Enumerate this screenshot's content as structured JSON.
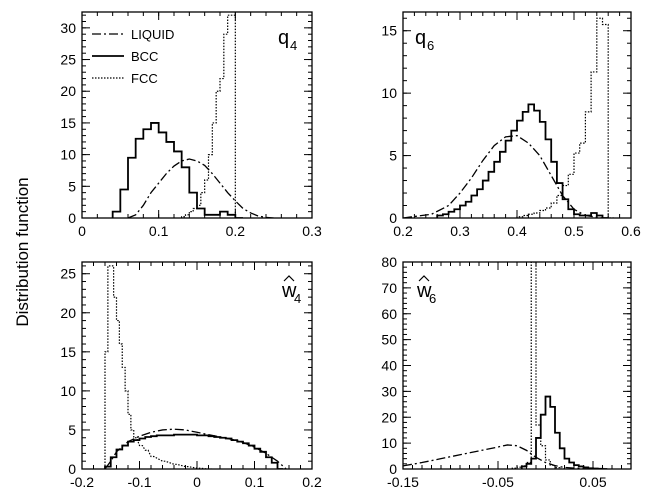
{
  "ylabel": "Distribution function",
  "styles": {
    "LIQUID": {
      "dash": "9,3,2,3",
      "width": 1.3
    },
    "BCC": {
      "dash": "",
      "width": 1.8
    },
    "FCC": {
      "dash": "1.5,1.5",
      "width": 1.2
    }
  },
  "legend": [
    {
      "label": "LIQUID",
      "style": "LIQUID"
    },
    {
      "label": "BCC",
      "style": "BCC"
    },
    {
      "label": "FCC",
      "style": "FCC"
    }
  ],
  "chart_data": [
    {
      "type": "line",
      "title": "q",
      "sub": "4",
      "hat": false,
      "xlim": [
        0,
        0.3
      ],
      "ylim": [
        0,
        32.5
      ],
      "xticks": [
        0,
        0.1,
        0.2,
        0.3
      ],
      "xtick_labels": [
        "0",
        "0.1",
        "0.2",
        "0.3"
      ],
      "xminor": 0.02,
      "yticks": [
        0,
        5,
        10,
        15,
        20,
        25,
        30
      ],
      "ytick_labels": [
        "0",
        "5",
        "10",
        "15",
        "20",
        "25",
        "30"
      ],
      "yminor": 1,
      "series": [
        {
          "name": "LIQUID",
          "step": false,
          "x": [
            0.06,
            0.07,
            0.08,
            0.09,
            0.1,
            0.11,
            0.12,
            0.13,
            0.14,
            0.15,
            0.16,
            0.17,
            0.18,
            0.19,
            0.2,
            0.21,
            0.22,
            0.23,
            0.24,
            0.25
          ],
          "y": [
            0,
            0.5,
            2,
            4,
            5.5,
            7,
            8.2,
            9,
            9.3,
            9,
            8.3,
            7,
            5.5,
            4,
            2.7,
            1.5,
            0.8,
            0.3,
            0.1,
            0
          ]
        },
        {
          "name": "BCC",
          "step": true,
          "w": 0.01,
          "x": [
            0.04,
            0.05,
            0.06,
            0.07,
            0.08,
            0.09,
            0.1,
            0.11,
            0.12,
            0.13,
            0.14,
            0.15,
            0.16,
            0.17,
            0.18,
            0.19,
            0.2
          ],
          "y": [
            1,
            4.5,
            9.5,
            12.5,
            14,
            15,
            13.5,
            12,
            10.5,
            8,
            4,
            1.5,
            0.5,
            0.5,
            1,
            0.5,
            0
          ]
        },
        {
          "name": "FCC",
          "step": true,
          "w": 0.005,
          "x": [
            0.13,
            0.135,
            0.14,
            0.145,
            0.15,
            0.155,
            0.16,
            0.165,
            0.17,
            0.175,
            0.18,
            0.185,
            0.19,
            0.195
          ],
          "y": [
            0.2,
            0.5,
            1,
            1.5,
            2,
            4,
            6,
            10,
            15,
            20,
            22,
            29,
            32,
            32
          ]
        }
      ]
    },
    {
      "type": "line",
      "title": "q",
      "sub": "6",
      "hat": false,
      "xlim": [
        0.2,
        0.6
      ],
      "ylim": [
        0,
        16.5
      ],
      "xticks": [
        0.2,
        0.3,
        0.4,
        0.5,
        0.6
      ],
      "xtick_labels": [
        "0.2",
        "0.3",
        "0.4",
        "0.5",
        "0.6"
      ],
      "xminor": 0.02,
      "yticks": [
        0,
        5,
        10,
        15
      ],
      "ytick_labels": [
        "0",
        "5",
        "10",
        "15"
      ],
      "yminor": 1,
      "series": [
        {
          "name": "LIQUID",
          "step": false,
          "x": [
            0.2,
            0.25,
            0.28,
            0.3,
            0.32,
            0.34,
            0.36,
            0.38,
            0.4,
            0.42,
            0.44,
            0.46,
            0.48,
            0.5,
            0.52,
            0.55
          ],
          "y": [
            0,
            0.3,
            1,
            2,
            3.2,
            4.6,
            5.8,
            6.5,
            6.6,
            6,
            5,
            3.4,
            1.8,
            0.7,
            0.2,
            0
          ]
        },
        {
          "name": "BCC",
          "step": true,
          "w": 0.01,
          "x": [
            0.26,
            0.27,
            0.28,
            0.29,
            0.3,
            0.31,
            0.32,
            0.33,
            0.34,
            0.35,
            0.36,
            0.37,
            0.38,
            0.39,
            0.4,
            0.41,
            0.42,
            0.43,
            0.44,
            0.45,
            0.46,
            0.47,
            0.48,
            0.49,
            0.5,
            0.51,
            0.52,
            0.53,
            0.54,
            0.55
          ],
          "y": [
            0.2,
            0.3,
            0.5,
            0.7,
            1,
            1.3,
            1.8,
            2.3,
            3,
            3.7,
            4.5,
            5.3,
            6.2,
            7,
            7.8,
            8.5,
            9.1,
            8.6,
            7.7,
            6.3,
            4.5,
            2.8,
            1.5,
            0.7,
            0.3,
            0.2,
            0.2,
            0.4,
            0.2,
            0
          ]
        },
        {
          "name": "FCC",
          "step": true,
          "w": 0.01,
          "x": [
            0.4,
            0.41,
            0.42,
            0.43,
            0.44,
            0.45,
            0.46,
            0.47,
            0.48,
            0.49,
            0.5,
            0.51,
            0.52,
            0.53,
            0.54,
            0.55,
            0.56
          ],
          "y": [
            0.1,
            0.2,
            0.3,
            0.4,
            0.6,
            0.8,
            1.2,
            1.8,
            2.6,
            3.5,
            5.2,
            6,
            8.5,
            11.7,
            16,
            15.5,
            0
          ]
        }
      ]
    },
    {
      "type": "line",
      "title": "w",
      "sub": "4",
      "hat": true,
      "xlim": [
        -0.2,
        0.2
      ],
      "ylim": [
        0,
        26.5
      ],
      "xticks": [
        -0.2,
        -0.1,
        0,
        0.1,
        0.2
      ],
      "xtick_labels": [
        "-0.2",
        "-0.1",
        "0",
        "0.1",
        "0.2"
      ],
      "xminor": 0.02,
      "yticks": [
        0,
        5,
        10,
        15,
        20,
        25
      ],
      "ytick_labels": [
        "0",
        "5",
        "10",
        "15",
        "20",
        "25"
      ],
      "yminor": 1,
      "series": [
        {
          "name": "LIQUID",
          "step": false,
          "x": [
            -0.16,
            -0.15,
            -0.14,
            -0.12,
            -0.1,
            -0.08,
            -0.06,
            -0.04,
            -0.02,
            0,
            0.02,
            0.04,
            0.06,
            0.08,
            0.1,
            0.12,
            0.14,
            0.155
          ],
          "y": [
            0,
            1,
            2.2,
            3.5,
            4.2,
            4.7,
            5,
            5.1,
            5,
            4.7,
            4.4,
            4.1,
            3.8,
            3.4,
            2.8,
            2,
            1,
            0
          ]
        },
        {
          "name": "BCC",
          "step": true,
          "w": 0.01,
          "x": [
            -0.16,
            -0.15,
            -0.14,
            -0.13,
            -0.12,
            -0.11,
            -0.1,
            -0.09,
            -0.08,
            -0.07,
            -0.06,
            -0.05,
            -0.04,
            -0.03,
            -0.02,
            -0.01,
            0,
            0.01,
            0.02,
            0.03,
            0.04,
            0.05,
            0.06,
            0.07,
            0.08,
            0.09,
            0.1,
            0.11,
            0.12,
            0.13,
            0.14
          ],
          "y": [
            0.3,
            1.5,
            2.5,
            3,
            3.5,
            3.7,
            3.9,
            4.1,
            4.2,
            4.3,
            4.3,
            4.3,
            4.4,
            4.4,
            4.4,
            4.4,
            4.3,
            4.3,
            4.2,
            4.1,
            4,
            3.9,
            3.7,
            3.5,
            3.3,
            3,
            2.6,
            2.2,
            1.5,
            0.8,
            0
          ]
        },
        {
          "name": "FCC",
          "step": true,
          "w": 0.005,
          "x": [
            -0.16,
            -0.155,
            -0.15,
            -0.145,
            -0.14,
            -0.135,
            -0.13,
            -0.125,
            -0.12,
            -0.115,
            -0.11,
            -0.1,
            -0.09,
            -0.08,
            -0.06,
            -0.04,
            -0.02,
            0,
            0.02
          ],
          "y": [
            15,
            26,
            26,
            22,
            19,
            16,
            13,
            10,
            7,
            5,
            4,
            3,
            2.4,
            1.6,
            1,
            0.6,
            0.3,
            0.1,
            0
          ]
        }
      ]
    },
    {
      "type": "line",
      "title": "w",
      "sub": "6",
      "hat": true,
      "xlim": [
        -0.15,
        0.09
      ],
      "ylim": [
        0,
        80
      ],
      "xticks": [
        -0.15,
        -0.05,
        0.05
      ],
      "xtick_labels": [
        "-0.15",
        "-0.05",
        "0.05"
      ],
      "xminor": 0.01,
      "yticks": [
        0,
        10,
        20,
        30,
        40,
        50,
        60,
        70,
        80
      ],
      "ytick_labels": [
        "0",
        "10",
        "20",
        "30",
        "40",
        "50",
        "60",
        "70",
        "80"
      ],
      "yminor": 2,
      "series": [
        {
          "name": "LIQUID",
          "step": false,
          "x": [
            -0.15,
            -0.13,
            -0.11,
            -0.09,
            -0.07,
            -0.05,
            -0.04,
            -0.03,
            -0.02,
            -0.01,
            0,
            0.01,
            0.02,
            0.04,
            0.06
          ],
          "y": [
            1.2,
            2.5,
            4,
            5.5,
            7,
            8.5,
            9.3,
            9,
            7.2,
            4.5,
            2.5,
            1.3,
            0.6,
            0.1,
            0
          ]
        },
        {
          "name": "BCC",
          "step": true,
          "w": 0.005,
          "x": [
            -0.025,
            -0.02,
            -0.015,
            -0.01,
            -0.005,
            0,
            0.005,
            0.01,
            0.015,
            0.02,
            0.025,
            0.03,
            0.035,
            0.04,
            0.045,
            0.05,
            0.055,
            0.06
          ],
          "y": [
            1,
            2,
            4,
            12,
            21,
            28,
            24,
            14,
            8,
            4,
            2.5,
            1.5,
            1,
            0.6,
            0.3,
            0.2,
            0.1,
            0
          ]
        },
        {
          "name": "FCC",
          "step": true,
          "w": 0.005,
          "x": [
            -0.035,
            -0.03,
            -0.025,
            -0.02,
            -0.015,
            -0.01,
            -0.005,
            0,
            0.005,
            0.01,
            0.015
          ],
          "y": [
            0.3,
            0.7,
            1.2,
            2.5,
            80,
            17,
            9,
            3.5,
            1.5,
            0.5,
            0
          ]
        }
      ]
    }
  ]
}
